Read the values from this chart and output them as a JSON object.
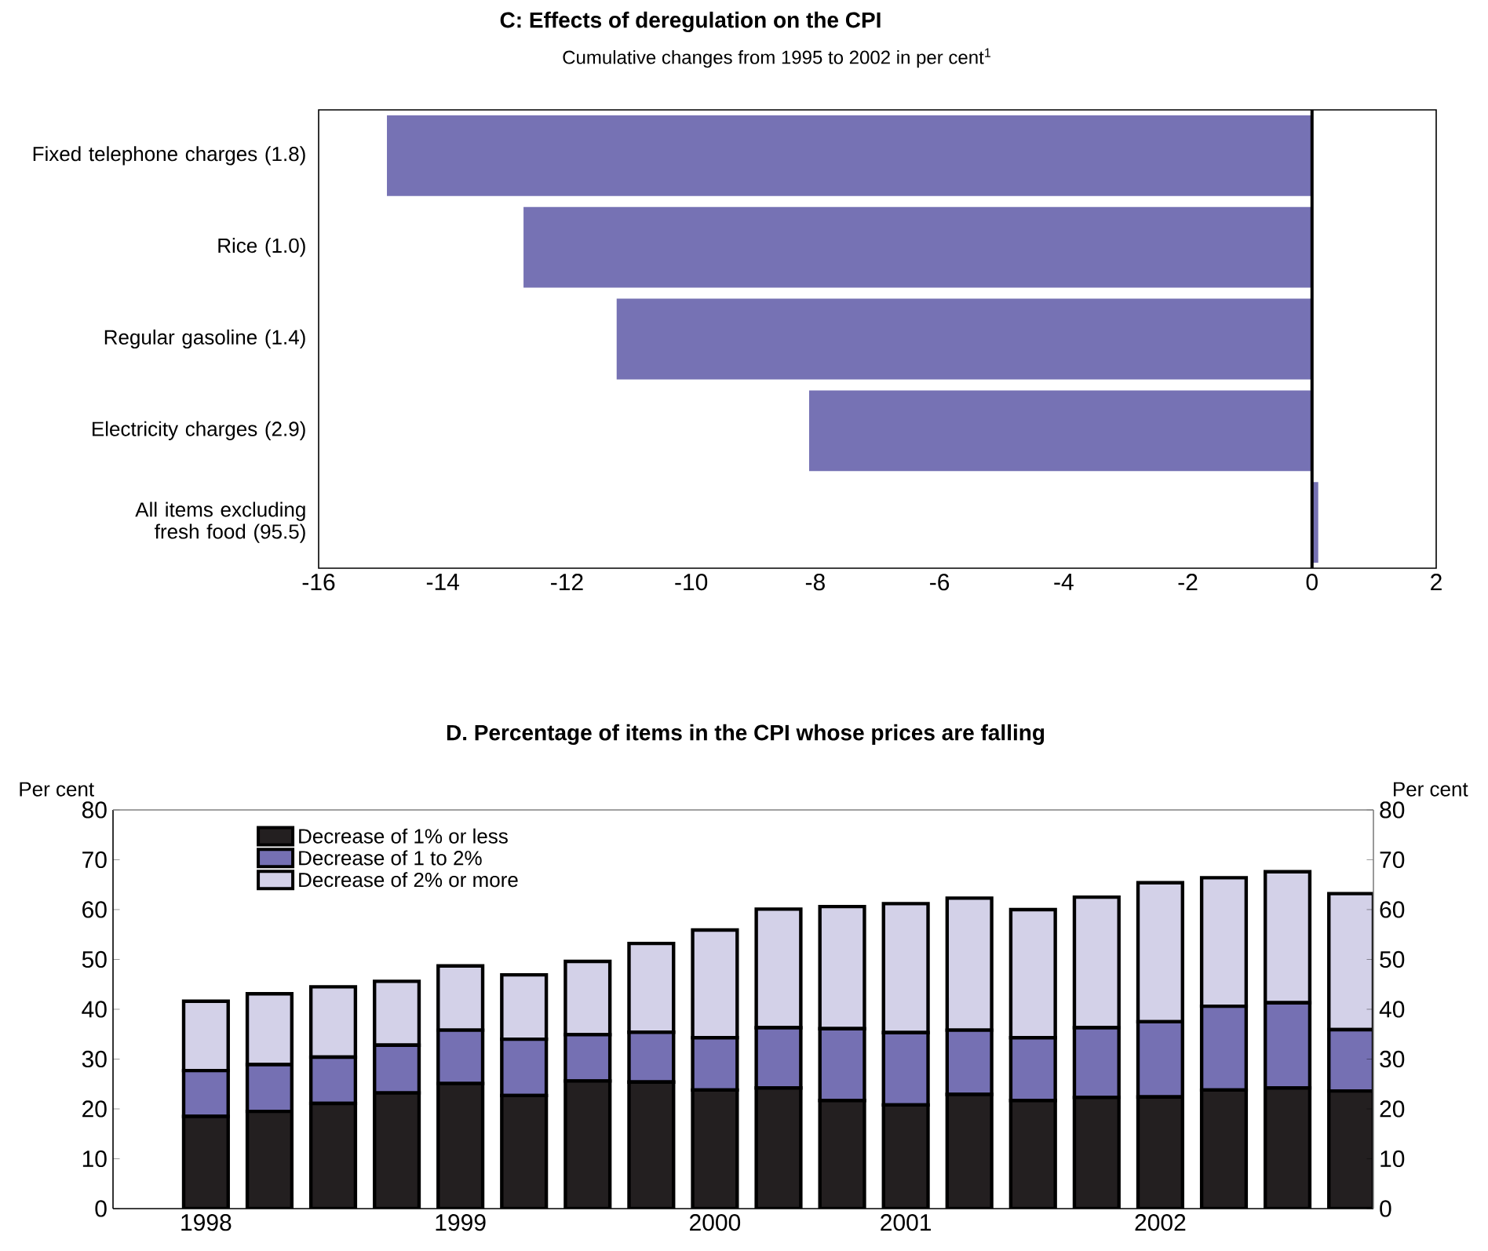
{
  "chart_data": [
    {
      "type": "bar",
      "title": "C:  Effects of deregulation on the CPI",
      "subtitle": "Cumulative changes from 1995 to 2002 in per cent$^{1}$",
      "orientation": "horizontal",
      "categories": [
        "Fixed telephone charges (1.8)",
        "Rice (1.0)",
        "Regular gasoline (1.4)",
        "Electricity charges (2.9)",
        "All items excluding fresh food (95.5)"
      ],
      "values": [
        -14.9,
        -12.7,
        -11.2,
        -8.1,
        0.1
      ],
      "color": "#7672b4",
      "xlim": [
        -16,
        2
      ],
      "xticks": [
        -16,
        -14,
        -12,
        -10,
        -8,
        -6,
        -4,
        -2,
        0,
        2
      ],
      "ref_lines": [
        {
          "axis": "x",
          "value": 0,
          "color": "#000000"
        }
      ]
    },
    {
      "type": "bar",
      "title": "D.  Percentage of items in the CPI whose prices are falling",
      "stacked": true,
      "categories": [
        "1998",
        null,
        null,
        null,
        "1999",
        null,
        null,
        null,
        "2000",
        null,
        null,
        "2001",
        null,
        null,
        null,
        "2002",
        null,
        null,
        null
      ],
      "series": [
        {
          "name": "Decrease of 1% or less",
          "color": "#231f20",
          "values": [
            18.5,
            19.5,
            21.1,
            23.2,
            25.1,
            22.7,
            25.6,
            25.4,
            23.8,
            24.2,
            21.7,
            20.8,
            22.9,
            21.7,
            22.3,
            22.4,
            23.8,
            24.2,
            23.6
          ]
        },
        {
          "name": "Decrease of 1 to 2%",
          "color": "#7570b3",
          "values": [
            9.2,
            9.4,
            9.3,
            9.6,
            10.7,
            11.3,
            9.3,
            10.0,
            10.5,
            12.1,
            14.4,
            14.5,
            12.9,
            12.6,
            14.0,
            15.1,
            16.8,
            17.1,
            12.3
          ]
        },
        {
          "name": "Decrease of 2% or more",
          "color": "#d3d1e8",
          "values": [
            13.9,
            14.2,
            14.1,
            12.8,
            12.9,
            12.9,
            14.7,
            17.8,
            21.6,
            23.8,
            24.5,
            25.9,
            26.5,
            25.7,
            26.2,
            27.9,
            25.8,
            26.3,
            27.3
          ]
        }
      ],
      "ylabel": "Per cent",
      "y2label": "Per cent",
      "ylim": [
        0,
        80
      ],
      "yticks": [
        0,
        10,
        20,
        30,
        40,
        50,
        60,
        70,
        80
      ],
      "y2lim": [
        0,
        80
      ],
      "y2ticks": [
        0,
        10,
        20,
        30,
        40,
        50,
        60,
        70,
        80
      ],
      "legend": "top left"
    }
  ]
}
